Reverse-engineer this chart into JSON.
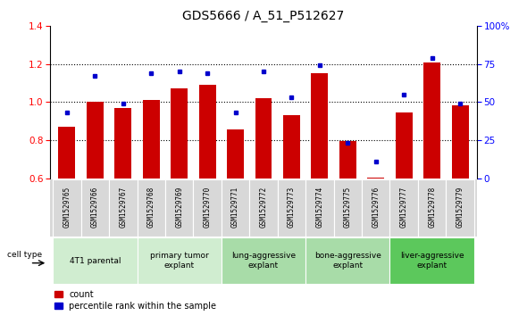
{
  "title": "GDS5666 / A_51_P512627",
  "samples": [
    "GSM1529765",
    "GSM1529766",
    "GSM1529767",
    "GSM1529768",
    "GSM1529769",
    "GSM1529770",
    "GSM1529771",
    "GSM1529772",
    "GSM1529773",
    "GSM1529774",
    "GSM1529775",
    "GSM1529776",
    "GSM1529777",
    "GSM1529778",
    "GSM1529779"
  ],
  "red_values": [
    0.87,
    1.0,
    0.97,
    1.01,
    1.07,
    1.09,
    0.855,
    1.02,
    0.93,
    1.15,
    0.795,
    0.605,
    0.945,
    1.21,
    0.985
  ],
  "blue_percentiles": [
    43,
    67,
    49,
    69,
    70,
    69,
    43,
    70,
    53,
    74,
    23,
    11,
    55,
    79,
    49
  ],
  "groups": [
    {
      "label": "4T1 parental",
      "start": 0,
      "end": 2,
      "color": "#d0edd0"
    },
    {
      "label": "primary tumor\nexplant",
      "start": 3,
      "end": 5,
      "color": "#d0edd0"
    },
    {
      "label": "lung-aggressive\nexplant",
      "start": 6,
      "end": 8,
      "color": "#a8dca8"
    },
    {
      "label": "bone-aggressive\nexplant",
      "start": 9,
      "end": 11,
      "color": "#a8dca8"
    },
    {
      "label": "liver-aggressive\nexplant",
      "start": 12,
      "end": 14,
      "color": "#5cc85c"
    }
  ],
  "ylim_left": [
    0.6,
    1.4
  ],
  "ylim_right": [
    0,
    100
  ],
  "yticks_left": [
    0.6,
    0.8,
    1.0,
    1.2,
    1.4
  ],
  "yticks_right": [
    0,
    25,
    50,
    75,
    100
  ],
  "bar_color": "#cc0000",
  "dot_color": "#0000cc",
  "cell_label_color": "#888888",
  "grid_lines": [
    0.8,
    1.0,
    1.2
  ]
}
